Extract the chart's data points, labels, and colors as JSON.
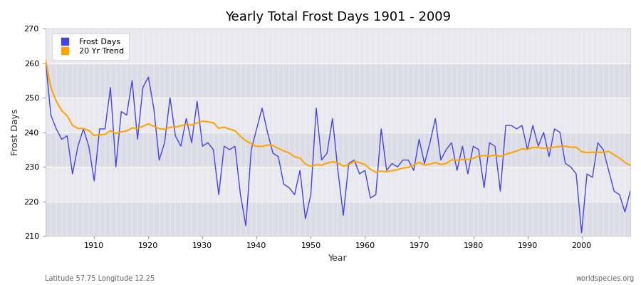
{
  "title": "Yearly Total Frost Days 1901 - 2009",
  "xlabel": "Year",
  "ylabel": "Frost Days",
  "lat_lon_label": "Latitude 57.75 Longitude 12.25",
  "watermark": "worldspecies.org",
  "line_color": "#4444dd",
  "trend_color": "#ffa500",
  "bg_color": "#e8e8ee",
  "ylim": [
    210,
    270
  ],
  "xlim": [
    1901,
    2009
  ],
  "yticks": [
    210,
    220,
    230,
    240,
    250,
    260,
    270
  ],
  "years": [
    1901,
    1902,
    1903,
    1904,
    1905,
    1906,
    1907,
    1908,
    1909,
    1910,
    1911,
    1912,
    1913,
    1914,
    1915,
    1916,
    1917,
    1918,
    1919,
    1920,
    1921,
    1922,
    1923,
    1924,
    1925,
    1926,
    1927,
    1928,
    1929,
    1930,
    1931,
    1932,
    1933,
    1934,
    1935,
    1936,
    1937,
    1938,
    1939,
    1940,
    1941,
    1942,
    1943,
    1944,
    1945,
    1946,
    1947,
    1948,
    1949,
    1950,
    1951,
    1952,
    1953,
    1954,
    1955,
    1956,
    1957,
    1958,
    1959,
    1960,
    1961,
    1962,
    1963,
    1964,
    1965,
    1966,
    1967,
    1968,
    1969,
    1970,
    1971,
    1972,
    1973,
    1974,
    1975,
    1976,
    1977,
    1978,
    1979,
    1980,
    1981,
    1982,
    1983,
    1984,
    1985,
    1986,
    1987,
    1988,
    1989,
    1990,
    1991,
    1992,
    1993,
    1994,
    1995,
    1996,
    1997,
    1998,
    1999,
    2000,
    2001,
    2002,
    2003,
    2004,
    2005,
    2006,
    2007,
    2008,
    2009
  ],
  "frost_days": [
    261,
    245,
    241,
    238,
    239,
    228,
    236,
    241,
    236,
    226,
    241,
    241,
    253,
    230,
    246,
    245,
    255,
    238,
    253,
    256,
    247,
    232,
    237,
    250,
    239,
    236,
    244,
    237,
    249,
    236,
    237,
    235,
    222,
    236,
    235,
    236,
    222,
    213,
    235,
    241,
    247,
    240,
    234,
    233,
    225,
    224,
    222,
    229,
    215,
    222,
    247,
    232,
    234,
    244,
    229,
    216,
    231,
    232,
    228,
    229,
    221,
    222,
    241,
    229,
    231,
    230,
    232,
    232,
    229,
    238,
    231,
    237,
    244,
    232,
    235,
    237,
    229,
    236,
    228,
    236,
    235,
    224,
    237,
    236,
    223,
    242,
    242,
    241,
    242,
    235,
    242,
    236,
    240,
    233,
    241,
    240,
    231,
    230,
    228,
    211,
    228,
    227,
    237,
    235,
    229,
    223,
    222,
    217,
    223
  ]
}
